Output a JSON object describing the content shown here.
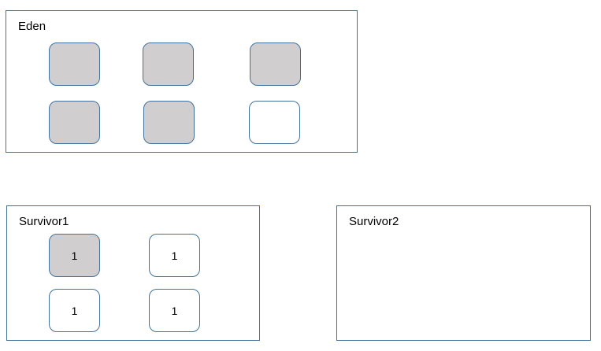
{
  "eden": {
    "label": "Eden",
    "objects": [
      {
        "state": "filled",
        "label": ""
      },
      {
        "state": "filled",
        "label": ""
      },
      {
        "state": "filled",
        "label": ""
      },
      {
        "state": "filled",
        "label": ""
      },
      {
        "state": "filled",
        "label": ""
      },
      {
        "state": "empty",
        "label": ""
      }
    ]
  },
  "survivor1": {
    "label": "Survivor1",
    "objects": [
      {
        "state": "filled",
        "label": "1"
      },
      {
        "state": "empty",
        "label": "1"
      },
      {
        "state": "empty",
        "label": "1"
      },
      {
        "state": "empty",
        "label": "1"
      }
    ]
  },
  "survivor2": {
    "label": "Survivor2",
    "objects": []
  },
  "colors": {
    "border": "#41719c",
    "filled": "#d0cece",
    "empty": "#ffffff"
  }
}
